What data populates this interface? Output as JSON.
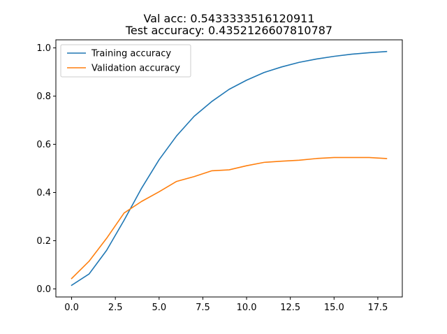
{
  "chart_data": {
    "type": "line",
    "title": "Val acc: 0.5433333516120911",
    "subtitle": "Test accuracy: 0.4352126607810787",
    "xlabel": "",
    "ylabel": "",
    "xlim": [
      -0.9,
      18.9
    ],
    "ylim": [
      -0.0335,
      1.0335
    ],
    "x_ticks": [
      0.0,
      2.5,
      5.0,
      7.5,
      10.0,
      12.5,
      15.0,
      17.5
    ],
    "x_tick_labels": [
      "0.0",
      "2.5",
      "5.0",
      "7.5",
      "10.0",
      "12.5",
      "15.0",
      "17.5"
    ],
    "y_ticks": [
      0.0,
      0.2,
      0.4,
      0.6,
      0.8,
      1.0
    ],
    "y_tick_labels": [
      "0.0",
      "0.2",
      "0.4",
      "0.6",
      "0.8",
      "1.0"
    ],
    "grid": false,
    "legend_position": "upper-left",
    "x": [
      0,
      1,
      2,
      3,
      4,
      5,
      6,
      7,
      8,
      9,
      10,
      11,
      12,
      13,
      14,
      15,
      16,
      17,
      18
    ],
    "series": [
      {
        "name": "Training accuracy",
        "color": "#1f77b4",
        "values": [
          0.015,
          0.062,
          0.16,
          0.285,
          0.418,
          0.536,
          0.635,
          0.716,
          0.777,
          0.828,
          0.866,
          0.898,
          0.921,
          0.94,
          0.954,
          0.965,
          0.974,
          0.98,
          0.985
        ]
      },
      {
        "name": "Validation accuracy",
        "color": "#ff7f0e",
        "values": [
          0.043,
          0.115,
          0.21,
          0.315,
          0.363,
          0.403,
          0.446,
          0.466,
          0.49,
          0.494,
          0.511,
          0.525,
          0.53,
          0.534,
          0.541,
          0.545,
          0.545,
          0.545,
          0.541
        ]
      }
    ]
  }
}
